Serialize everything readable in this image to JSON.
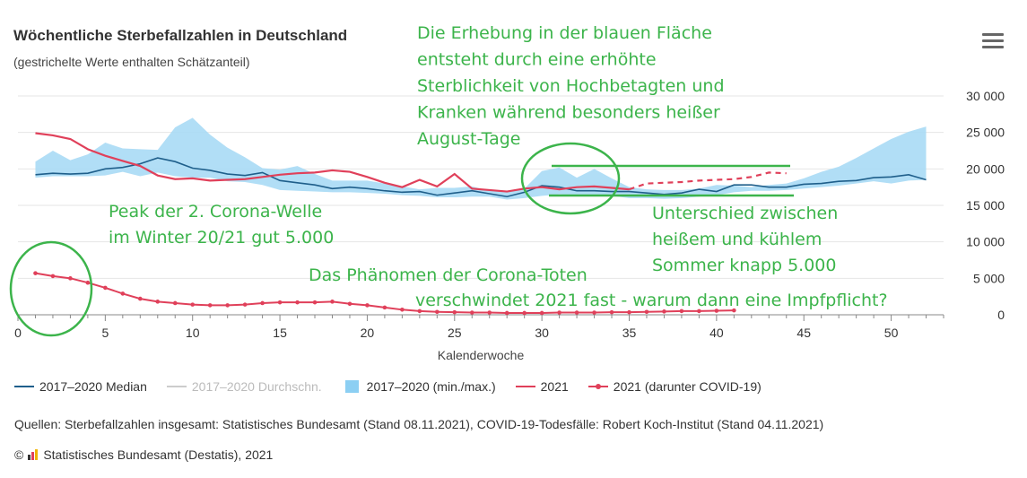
{
  "title": "Wöchentliche Sterbefallzahlen in Deutschland",
  "subtitle": "(gestrichelte Werte enthalten Schätzanteil)",
  "menu_icon": "hamburger-menu-icon",
  "legend": [
    {
      "label": "2017–2020 Median",
      "color": "#1f5f8b",
      "kind": "line"
    },
    {
      "label": "2017–2020 Durchschn.",
      "color": "#cccccc",
      "kind": "line",
      "disabled": true
    },
    {
      "label": "2017–2020 (min./max.)",
      "color": "#8ccff3",
      "kind": "area"
    },
    {
      "label": "2021",
      "color": "#e0405a",
      "kind": "line"
    },
    {
      "label": "2021 (darunter COVID-19)",
      "color": "#e0405a",
      "kind": "line-dot"
    }
  ],
  "source": "Quellen: Sterbefallzahlen insgesamt: Statistisches Bundesamt (Stand 08.11.2021), COVID-19-Todesfälle: Robert Koch-Institut (Stand 04.11.2021)",
  "credit": {
    "symbol": "©",
    "text": "Statistisches Bundesamt (Destatis), 2021",
    "logo_icon": "destatis-logo-icon"
  },
  "annotations": {
    "heat": [
      "Die Erhebung in der blauen Fläche",
      "entsteht durch eine erhöhte",
      "Sterblichkeit von Hochbetagten und",
      "Kranken während besonders heißer",
      "August-Tage"
    ],
    "peak": [
      "Peak der 2. Corona-Welle",
      "im Winter 20/21 gut 5.000"
    ],
    "diff": [
      "Unterschied zwischen",
      "heißem und kühlem",
      "Sommer knapp 5.000"
    ],
    "phenomenon": [
      "Das Phänomen der Corona-Toten",
      "verschwindet 2021 fast - warum dann eine Impfpflicht?"
    ]
  },
  "chart_data": {
    "type": "line",
    "xlabel": "Kalenderwoche",
    "ylabel": "",
    "xlim": [
      0,
      53
    ],
    "ylim": [
      0,
      30000
    ],
    "xticks": [
      0,
      5,
      10,
      15,
      20,
      25,
      30,
      35,
      40,
      45,
      50
    ],
    "yticks": [
      0,
      5000,
      10000,
      15000,
      20000,
      25000,
      30000
    ],
    "ytick_labels": [
      "0",
      "5 000",
      "10 000",
      "15 000",
      "20 000",
      "25 000",
      "30 000"
    ],
    "grid": "horizontal",
    "legend_position": "bottom",
    "weeks": [
      1,
      2,
      3,
      4,
      5,
      6,
      7,
      8,
      9,
      10,
      11,
      12,
      13,
      14,
      15,
      16,
      17,
      18,
      19,
      20,
      21,
      22,
      23,
      24,
      25,
      26,
      27,
      28,
      29,
      30,
      31,
      32,
      33,
      34,
      35,
      36,
      37,
      38,
      39,
      40,
      41,
      42,
      43,
      44,
      45,
      46,
      47,
      48,
      49,
      50,
      51,
      52
    ],
    "series": [
      {
        "name": "2017–2020 (min./max.)",
        "kind": "area",
        "min": [
          18800,
          19000,
          19000,
          19000,
          19100,
          19600,
          19000,
          19500,
          19000,
          18800,
          18800,
          18300,
          18200,
          17800,
          17100,
          17000,
          16900,
          16800,
          16800,
          16700,
          16600,
          16400,
          16300,
          16100,
          16100,
          16200,
          16200,
          15800,
          16000,
          16300,
          16500,
          16400,
          16400,
          16300,
          16000,
          16000,
          15900,
          16000,
          16200,
          16400,
          16800,
          17000,
          17000,
          17100,
          17300,
          17500,
          17700,
          18000,
          18300,
          18000,
          18400,
          18500
        ],
        "max": [
          21000,
          22500,
          21200,
          22000,
          23600,
          22800,
          22700,
          22600,
          25700,
          27000,
          24700,
          22900,
          21600,
          20100,
          19900,
          20400,
          19300,
          18400,
          18400,
          18400,
          18000,
          17600,
          17200,
          17400,
          17400,
          17600,
          17000,
          16900,
          17300,
          19700,
          20200,
          18800,
          20000,
          18700,
          17500,
          17200,
          17100,
          17100,
          17300,
          17800,
          17700,
          17500,
          17800,
          18000,
          18700,
          19600,
          20300,
          21500,
          22800,
          24100,
          25100,
          25800
        ]
      },
      {
        "name": "2017–2020 Median",
        "kind": "line",
        "values": [
          19200,
          19400,
          19300,
          19400,
          20000,
          20200,
          20700,
          21500,
          21000,
          20100,
          19800,
          19300,
          19100,
          19500,
          18400,
          18100,
          17800,
          17300,
          17500,
          17300,
          17000,
          16800,
          16900,
          16400,
          16700,
          17000,
          16600,
          16200,
          16800,
          17700,
          17500,
          17000,
          17000,
          16900,
          16900,
          16700,
          16500,
          16700,
          17200,
          16900,
          17800,
          17800,
          17500,
          17500,
          17900,
          18000,
          18300,
          18400,
          18800,
          18900,
          19200,
          18500
        ]
      },
      {
        "name": "2021",
        "kind": "line",
        "values": [
          24900,
          24600,
          24100,
          22700,
          21800,
          21100,
          20400,
          19100,
          18600,
          18700,
          18400,
          18500,
          18600,
          18900,
          19200,
          19400,
          19500,
          19800,
          19600,
          18900,
          18100,
          17500,
          18500,
          17600,
          19300,
          17300,
          17100,
          16900,
          17300,
          17500,
          17200,
          17500,
          17600,
          17400,
          17200,
          18000,
          18100,
          18200,
          18400,
          18500,
          18600,
          18900,
          19500,
          19400
        ],
        "dashed_from_week": 35
      },
      {
        "name": "2021 (darunter COVID-19)",
        "kind": "line-dot",
        "values": [
          5700,
          5300,
          5000,
          4400,
          3700,
          2900,
          2200,
          1800,
          1600,
          1400,
          1300,
          1300,
          1400,
          1600,
          1700,
          1700,
          1700,
          1800,
          1500,
          1300,
          1000,
          700,
          500,
          400,
          350,
          300,
          300,
          250,
          250,
          250,
          300,
          300,
          300,
          350,
          350,
          400,
          450,
          500,
          500,
          550,
          600
        ]
      }
    ]
  }
}
